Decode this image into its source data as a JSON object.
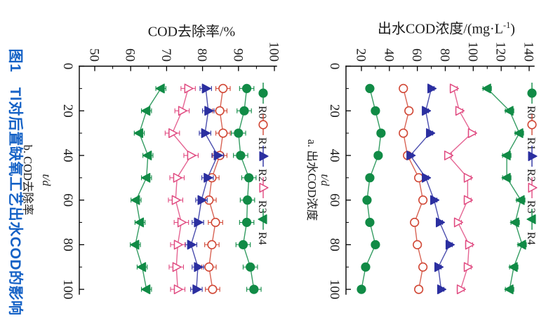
{
  "figure": {
    "caption": "图1　Tl对后置缺氧工艺出水COD的影响",
    "caption_color": "#1562c6",
    "text_color": "#1c1c1c",
    "axis_color": "#000000"
  },
  "legend_labels": [
    "R0",
    "R1",
    "R2",
    "R3",
    "R4"
  ],
  "chart_data": [
    {
      "id": "a",
      "type": "line",
      "title": "出水COD浓度/(mg·L⁻¹)",
      "title_parts": {
        "pre": "出水COD浓度/(mg·L",
        "sup": "-1",
        "post": ")"
      },
      "caption": "a. 出水COD浓度",
      "xlabel": "t/d",
      "xlim": [
        0,
        100
      ],
      "xticks": [
        0,
        20,
        40,
        60,
        80,
        100
      ],
      "ylim": [
        20,
        140
      ],
      "yticks": [
        20,
        40,
        60,
        80,
        100,
        120,
        140
      ],
      "grid": false,
      "legend_position": "top-row",
      "x": [
        10,
        20,
        30,
        40,
        50,
        60,
        70,
        80,
        90,
        100
      ],
      "series": [
        {
          "name": "R0",
          "color": "#118b46",
          "marker": "circle",
          "filled": true,
          "err": 1.5,
          "values": [
            26,
            30,
            34,
            32,
            26,
            24,
            26,
            30,
            23,
            20
          ]
        },
        {
          "name": "R1",
          "color": "#d14836",
          "marker": "circle",
          "filled": false,
          "err": 1.5,
          "values": [
            50,
            54,
            50,
            53,
            61,
            64,
            58,
            60,
            64,
            61
          ]
        },
        {
          "name": "R2",
          "color": "#2b2fa0",
          "marker": "triangle-up",
          "filled": true,
          "err": 2,
          "values": [
            70,
            66,
            69,
            55,
            66,
            72,
            76,
            83,
            75,
            77
          ]
        },
        {
          "name": "R3",
          "color": "#e04a80",
          "marker": "triangle-up",
          "filled": false,
          "err": 2.5,
          "values": [
            86,
            90,
            99,
            82,
            96,
            96,
            89,
            97,
            96,
            91
          ]
        },
        {
          "name": "R4",
          "color": "#118b46",
          "marker": "triangle-down",
          "filled": true,
          "err": 3,
          "values": [
            110,
            126,
            133,
            124,
            124,
            134,
            130,
            135,
            129,
            126
          ]
        }
      ]
    },
    {
      "id": "b",
      "type": "line",
      "title": "COD去除率/%",
      "title_parts": {
        "pre": "COD去除率/%",
        "sup": "",
        "post": ""
      },
      "caption": "b. COD去除率",
      "xlabel": "t/d",
      "xlim": [
        0,
        100
      ],
      "xticks": [
        0,
        20,
        40,
        60,
        80,
        100
      ],
      "ylim": [
        50,
        100
      ],
      "yticks": [
        50,
        60,
        70,
        80,
        90,
        100
      ],
      "grid": false,
      "legend_position": "top-row",
      "x": [
        10,
        20,
        30,
        40,
        50,
        60,
        70,
        80,
        90,
        100
      ],
      "series": [
        {
          "name": "R0",
          "color": "#118b46",
          "marker": "circle",
          "filled": true,
          "err": 2,
          "values": [
            92.3,
            91.6,
            90.0,
            90.6,
            92.9,
            92.5,
            92.3,
            91.3,
            93.3,
            94.3
          ]
        },
        {
          "name": "R1",
          "color": "#d14836",
          "marker": "circle",
          "filled": false,
          "err": 2,
          "values": [
            85.7,
            84.8,
            85.7,
            84.8,
            82.6,
            81.8,
            83.6,
            82.6,
            81.8,
            82.8
          ]
        },
        {
          "name": "R2",
          "color": "#2b2fa0",
          "marker": "triangle-up",
          "filled": true,
          "err": 1.6,
          "values": [
            80.9,
            81.6,
            80.7,
            84.2,
            81.4,
            79.7,
            78.7,
            76.8,
            78.7,
            78.3
          ]
        },
        {
          "name": "R3",
          "color": "#e04a80",
          "marker": "triangle-up",
          "filled": false,
          "err": 2,
          "values": [
            76.0,
            74.3,
            71.6,
            76.8,
            72.9,
            72.5,
            74.1,
            73.1,
            72.7,
            73.1
          ]
        },
        {
          "name": "R4",
          "color": "#118b46",
          "marker": "triangle-down",
          "filled": true,
          "err": 1.4,
          "values": [
            68.4,
            64.4,
            62.4,
            64.8,
            64.4,
            61.5,
            62.6,
            61.3,
            63.2,
            64.4
          ]
        }
      ]
    }
  ]
}
